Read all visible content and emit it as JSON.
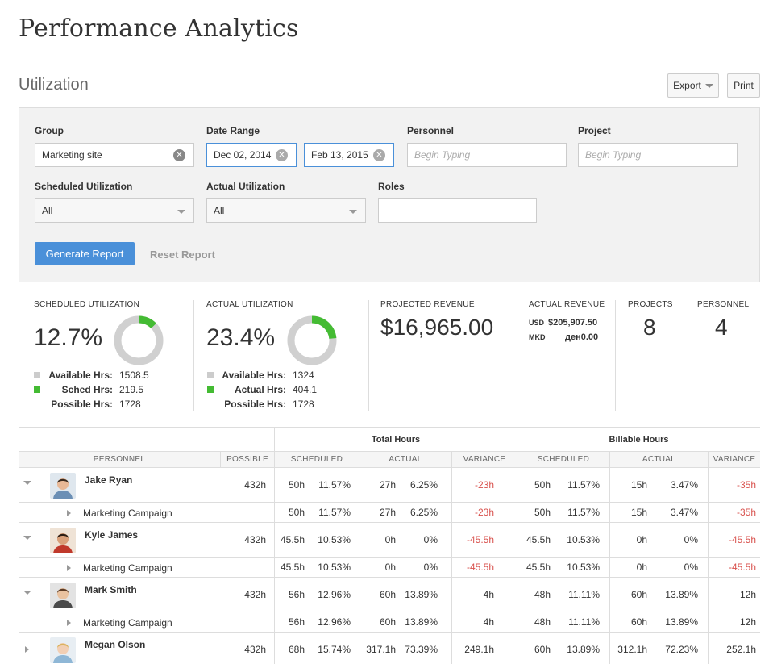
{
  "page": {
    "title": "Performance Analytics",
    "section": "Utilization"
  },
  "toolbar": {
    "export_label": "Export",
    "print_label": "Print"
  },
  "filters": {
    "group": {
      "label": "Group",
      "value": "Marketing site"
    },
    "date_range": {
      "label": "Date Range",
      "start": "Dec 02, 2014",
      "end": "Feb 13, 2015"
    },
    "personnel": {
      "label": "Personnel",
      "placeholder": "Begin Typing"
    },
    "project": {
      "label": "Project",
      "placeholder": "Begin Typing"
    },
    "scheduled_utilization": {
      "label": "Scheduled Utilization",
      "value": "All"
    },
    "actual_utilization": {
      "label": "Actual Utilization",
      "value": "All"
    },
    "roles": {
      "label": "Roles",
      "value": ""
    },
    "generate_label": "Generate Report",
    "reset_label": "Reset Report"
  },
  "stats": {
    "scheduled": {
      "label": "SCHEDULED UTILIZATION",
      "value": "12.7%",
      "fraction": 0.127,
      "rows": [
        {
          "key": "Available Hrs:",
          "val": "1508.5",
          "swatch": "#cccccc"
        },
        {
          "key": "Sched Hrs:",
          "val": "219.5",
          "swatch": "#44bb33"
        },
        {
          "key": "Possible Hrs:",
          "val": "1728",
          "swatch": ""
        }
      ]
    },
    "actual": {
      "label": "ACTUAL UTILIZATION",
      "value": "23.4%",
      "fraction": 0.234,
      "rows": [
        {
          "key": "Available Hrs:",
          "val": "1324",
          "swatch": "#cccccc"
        },
        {
          "key": "Actual Hrs:",
          "val": "404.1",
          "swatch": "#44bb33"
        },
        {
          "key": "Possible Hrs:",
          "val": "1728",
          "swatch": ""
        }
      ]
    },
    "projected_revenue": {
      "label": "PROJECTED REVENUE",
      "value": "$16,965.00"
    },
    "actual_revenue": {
      "label": "ACTUAL REVENUE",
      "rows": [
        {
          "currency": "USD",
          "amount": "$205,907.50"
        },
        {
          "currency": "MKD",
          "amount": "ден0.00"
        }
      ]
    },
    "projects": {
      "label": "PROJECTS",
      "value": "8"
    },
    "personnel": {
      "label": "PERSONNEL",
      "value": "4"
    }
  },
  "colors": {
    "accent": "#4a90d9",
    "donut_fill": "#44bb33",
    "donut_track": "#d0d0d0",
    "negative": "#d9534f"
  },
  "table": {
    "group_headers": {
      "total": "Total Hours",
      "billable": "Billable Hours"
    },
    "columns": {
      "personnel": "PERSONNEL",
      "possible": "POSSIBLE",
      "scheduled": "SCHEDULED",
      "actual": "ACTUAL",
      "variance": "VARIANCE"
    },
    "people": [
      {
        "name": "Jake Ryan",
        "expanded": true,
        "possible": "432h",
        "total": {
          "sched_h": "50h",
          "sched_p": "11.57%",
          "act_h": "27h",
          "act_p": "6.25%",
          "var": "-23h",
          "neg": true
        },
        "billable": {
          "sched_h": "50h",
          "sched_p": "11.57%",
          "act_h": "15h",
          "act_p": "3.47%",
          "var": "-35h",
          "neg": true
        },
        "sub": {
          "name": "Marketing Campaign",
          "total": {
            "sched_h": "50h",
            "sched_p": "11.57%",
            "act_h": "27h",
            "act_p": "6.25%",
            "var": "-23h",
            "neg": true
          },
          "billable": {
            "sched_h": "50h",
            "sched_p": "11.57%",
            "act_h": "15h",
            "act_p": "3.47%",
            "var": "-35h",
            "neg": true
          }
        }
      },
      {
        "name": "Kyle James",
        "expanded": true,
        "possible": "432h",
        "total": {
          "sched_h": "45.5h",
          "sched_p": "10.53%",
          "act_h": "0h",
          "act_p": "0%",
          "var": "-45.5h",
          "neg": true
        },
        "billable": {
          "sched_h": "45.5h",
          "sched_p": "10.53%",
          "act_h": "0h",
          "act_p": "0%",
          "var": "-45.5h",
          "neg": true
        },
        "sub": {
          "name": "Marketing Campaign",
          "total": {
            "sched_h": "45.5h",
            "sched_p": "10.53%",
            "act_h": "0h",
            "act_p": "0%",
            "var": "-45.5h",
            "neg": true
          },
          "billable": {
            "sched_h": "45.5h",
            "sched_p": "10.53%",
            "act_h": "0h",
            "act_p": "0%",
            "var": "-45.5h",
            "neg": true
          }
        }
      },
      {
        "name": "Mark Smith",
        "expanded": true,
        "possible": "432h",
        "total": {
          "sched_h": "56h",
          "sched_p": "12.96%",
          "act_h": "60h",
          "act_p": "13.89%",
          "var": "4h",
          "neg": false
        },
        "billable": {
          "sched_h": "48h",
          "sched_p": "11.11%",
          "act_h": "60h",
          "act_p": "13.89%",
          "var": "12h",
          "neg": false
        },
        "sub": {
          "name": "Marketing Campaign",
          "total": {
            "sched_h": "56h",
            "sched_p": "12.96%",
            "act_h": "60h",
            "act_p": "13.89%",
            "var": "4h",
            "neg": false
          },
          "billable": {
            "sched_h": "48h",
            "sched_p": "11.11%",
            "act_h": "60h",
            "act_p": "13.89%",
            "var": "12h",
            "neg": false
          }
        }
      },
      {
        "name": "Megan Olson",
        "expanded": false,
        "possible": "432h",
        "total": {
          "sched_h": "68h",
          "sched_p": "15.74%",
          "act_h": "317.1h",
          "act_p": "73.39%",
          "var": "249.1h",
          "neg": false
        },
        "billable": {
          "sched_h": "60h",
          "sched_p": "13.89%",
          "act_h": "312.1h",
          "act_p": "72.23%",
          "var": "252.1h",
          "neg": false
        }
      }
    ]
  }
}
